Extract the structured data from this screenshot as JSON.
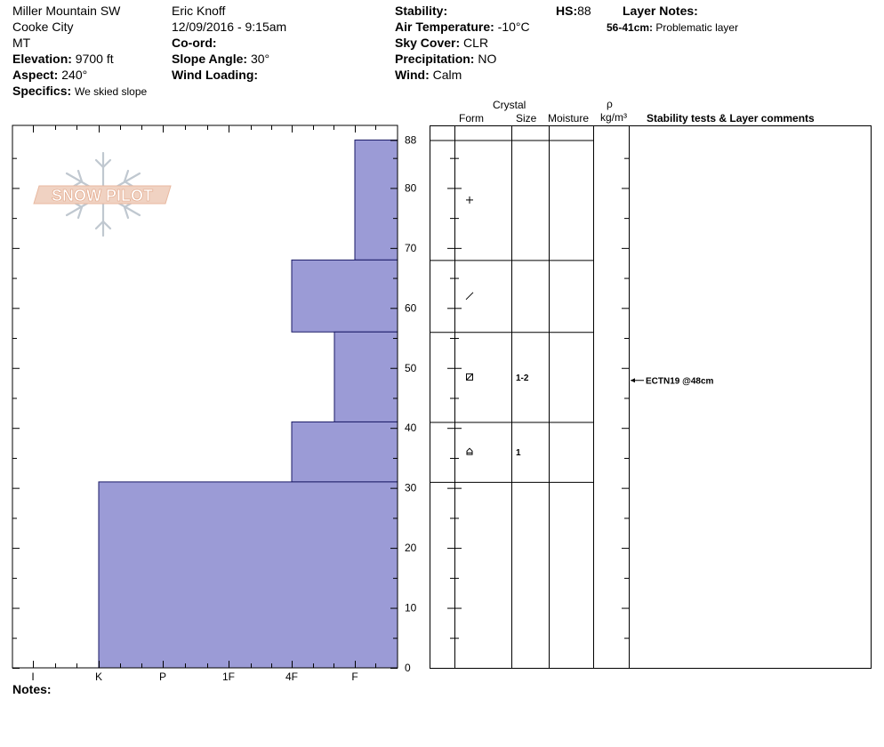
{
  "header": {
    "location": "Miller Mountain SW",
    "city": "Cooke City",
    "state": "MT",
    "elevation_label": "Elevation:",
    "elevation_value": "9700 ft",
    "aspect_label": "Aspect:",
    "aspect_value": "240°",
    "specifics_label": "Specifics:",
    "specifics_value": "We skied slope",
    "observer": "Eric Knoff",
    "datetime": "12/09/2016 - 9:15am",
    "coord_label": "Co-ord:",
    "slope_label": "Slope Angle:",
    "slope_value": "30°",
    "wind_loading_label": "Wind Loading:",
    "stability_label": "Stability:",
    "air_temp_label": "Air Temperature:",
    "air_temp_value": "-10°C",
    "sky_label": "Sky Cover:",
    "sky_value": "CLR",
    "precip_label": "Precipitation:",
    "precip_value": "NO",
    "wind_label": "Wind:",
    "wind_value": "Calm",
    "hs_label": "HS:",
    "hs_value": "88",
    "layer_notes_label": "Layer Notes:",
    "layer_note_range": "56-41cm:",
    "layer_note_text": "Problematic layer"
  },
  "logo": {
    "text": "SNOW PILOT"
  },
  "table_headers": {
    "crystal": "Crystal",
    "form": "Form",
    "size": "Size",
    "moisture": "Moisture",
    "rho": "ρ",
    "density_unit": "kg/m³",
    "comments": "Stability tests & Layer comments"
  },
  "notes_label": "Notes:",
  "chart_data": {
    "type": "bar",
    "orientation": "horizontal",
    "y_axis": {
      "label": "",
      "range": [
        0,
        88
      ],
      "ticks": [
        0,
        10,
        20,
        30,
        40,
        50,
        60,
        70,
        80,
        88
      ]
    },
    "x_axis": {
      "label": "",
      "hardness_scale": [
        "I",
        "K",
        "P",
        "1F",
        "4F",
        "F"
      ]
    },
    "fill_color": "#9b9bd6",
    "layers": [
      {
        "top": 88,
        "bottom": 68,
        "hardness": "F",
        "form": "+",
        "size": ""
      },
      {
        "top": 68,
        "bottom": 56,
        "hardness": "4F",
        "form": "/",
        "size": ""
      },
      {
        "top": 56,
        "bottom": 41,
        "hardness": "4F-F",
        "form": "facet-rounding",
        "size": "1-2"
      },
      {
        "top": 41,
        "bottom": 31,
        "hardness": "4F",
        "form": "depth-hoar",
        "size": "1"
      },
      {
        "top": 31,
        "bottom": 0,
        "hardness": "K",
        "form": "",
        "size": ""
      }
    ],
    "tests": [
      {
        "depth": 48,
        "label": "ECTN19 @48cm"
      }
    ]
  }
}
